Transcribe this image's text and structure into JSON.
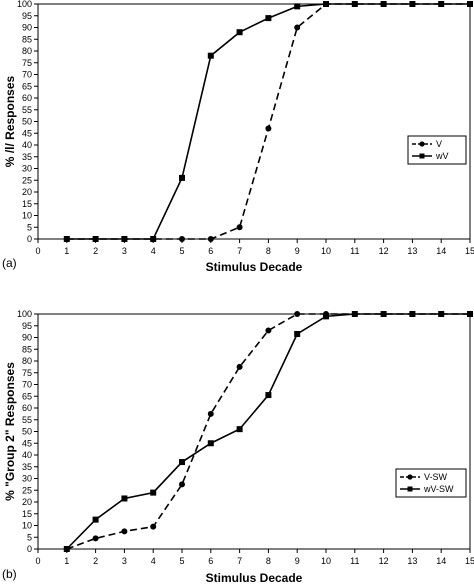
{
  "chart_data": [
    {
      "type": "line",
      "panel_label": "(a)",
      "xlabel": "Stimulus Decade",
      "ylabel": "% /l/ Responses",
      "xlim": [
        0,
        15
      ],
      "ylim": [
        0,
        100
      ],
      "x_ticks": [
        0,
        1,
        2,
        3,
        4,
        5,
        6,
        7,
        8,
        9,
        10,
        11,
        12,
        13,
        14,
        15
      ],
      "y_ticks": [
        0,
        5,
        10,
        15,
        20,
        25,
        30,
        35,
        40,
        45,
        50,
        55,
        60,
        65,
        70,
        75,
        80,
        85,
        90,
        95,
        100
      ],
      "grid": false,
      "legend": "right",
      "series": [
        {
          "name": "V",
          "marker": "circle",
          "line": "dashed",
          "x": [
            1,
            2,
            3,
            4,
            5,
            6,
            7,
            8,
            9,
            10,
            11,
            12,
            13,
            14,
            15
          ],
          "values": [
            0,
            0,
            0,
            0,
            0,
            0,
            5,
            47,
            90,
            100,
            100,
            100,
            100,
            100,
            100
          ]
        },
        {
          "name": "wV",
          "marker": "square",
          "line": "solid",
          "x": [
            1,
            2,
            3,
            4,
            5,
            6,
            7,
            8,
            9,
            10,
            11,
            12,
            13,
            14,
            15
          ],
          "values": [
            0,
            0,
            0,
            0,
            26,
            78,
            88,
            94,
            99,
            100,
            100,
            100,
            100,
            100,
            100
          ]
        }
      ]
    },
    {
      "type": "line",
      "panel_label": "(b)",
      "xlabel": "Stimulus Decade",
      "ylabel": "% \"Group 2\" Responses",
      "xlim": [
        0,
        15
      ],
      "ylim": [
        0,
        100
      ],
      "x_ticks": [
        0,
        1,
        2,
        3,
        4,
        5,
        6,
        7,
        8,
        9,
        10,
        11,
        12,
        13,
        14,
        15
      ],
      "y_ticks": [
        0,
        5,
        10,
        15,
        20,
        25,
        30,
        35,
        40,
        45,
        50,
        55,
        60,
        65,
        70,
        75,
        80,
        85,
        90,
        95,
        100
      ],
      "grid": false,
      "legend": "right",
      "series": [
        {
          "name": "V-SW",
          "marker": "circle",
          "line": "dashed",
          "x": [
            1,
            2,
            3,
            4,
            5,
            6,
            7,
            8,
            9,
            10,
            11,
            12,
            13,
            14,
            15
          ],
          "values": [
            0,
            4.5,
            7.5,
            9.5,
            27.5,
            57.5,
            77.5,
            93,
            100,
            100,
            100,
            100,
            100,
            100,
            100
          ]
        },
        {
          "name": "wV-SW",
          "marker": "square",
          "line": "solid",
          "x": [
            1,
            2,
            3,
            4,
            5,
            6,
            7,
            8,
            9,
            10,
            11,
            12,
            13,
            14,
            15
          ],
          "values": [
            0,
            12.5,
            21.5,
            24,
            37,
            45,
            51,
            65.5,
            91.5,
            99,
            100,
            100,
            100,
            100,
            100
          ]
        }
      ]
    }
  ]
}
